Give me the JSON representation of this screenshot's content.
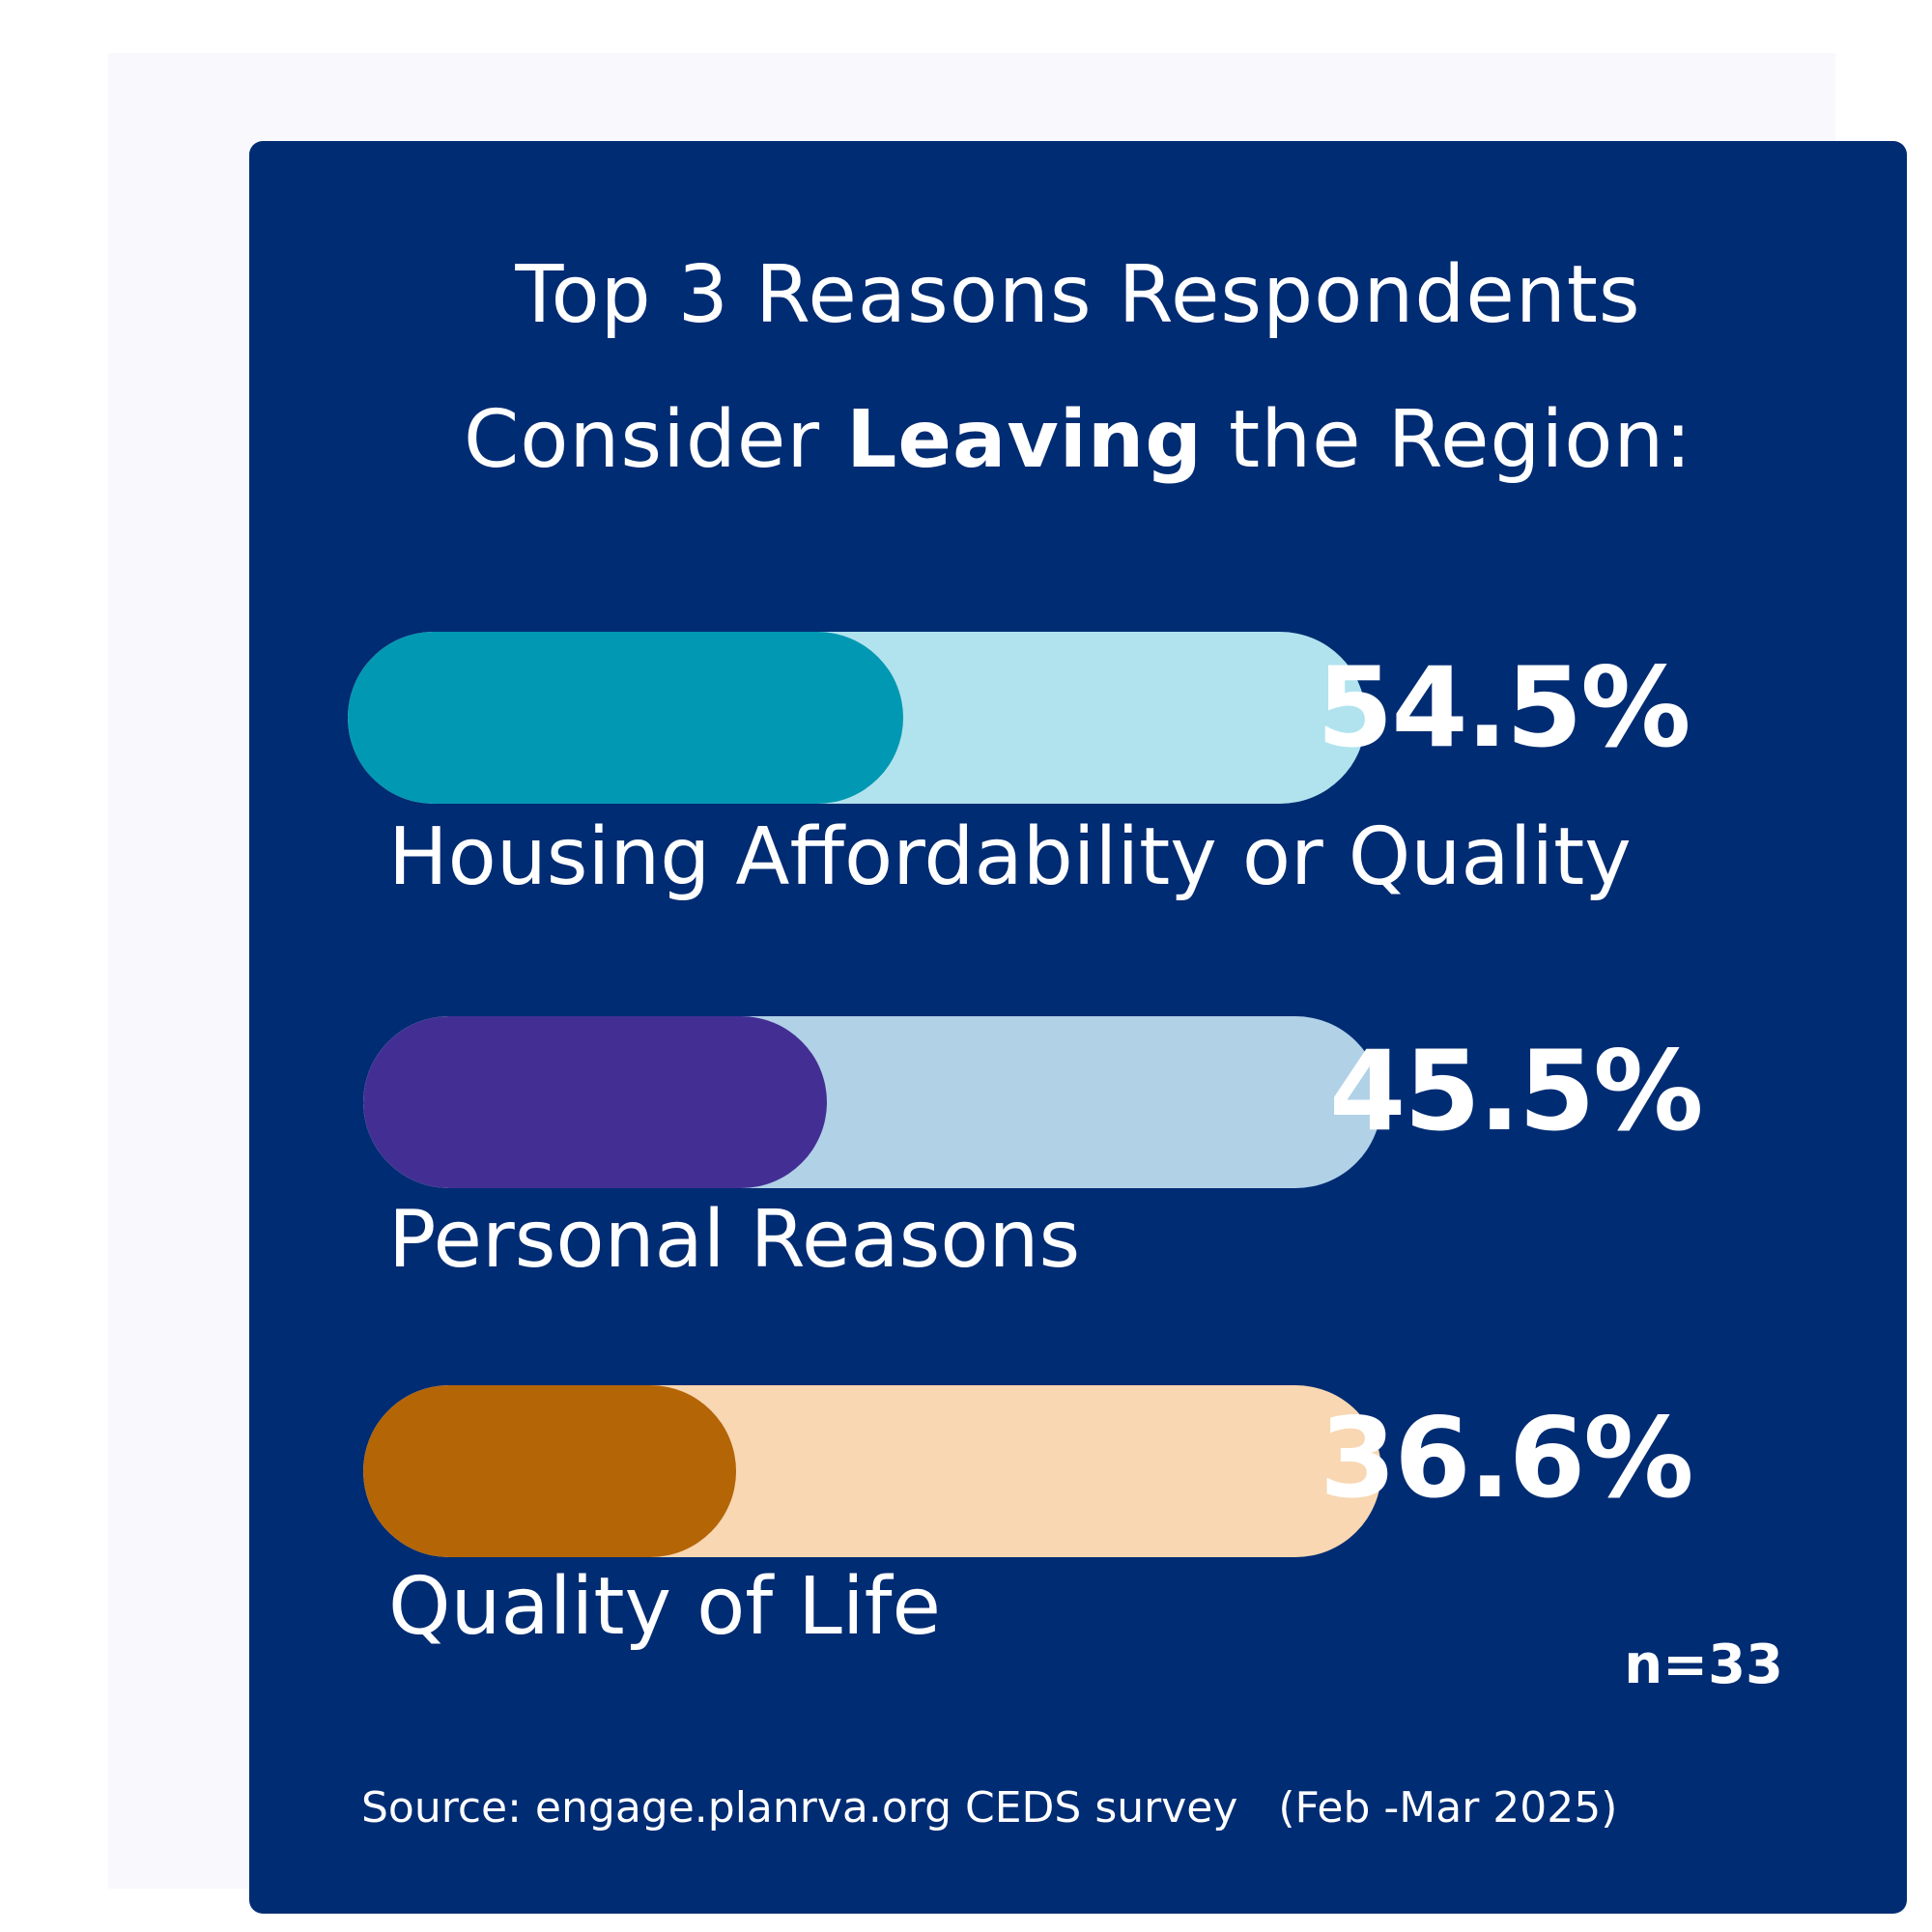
{
  "chart_data": {
    "type": "bar",
    "title_parts": [
      "Top 3 Reasons Respondents",
      "Consider ",
      "Leaving",
      " the Region:"
    ],
    "categories": [
      "Housing Affordability or Quality",
      "Personal Reasons",
      "Quality of Life"
    ],
    "values": [
      54.5,
      45.5,
      36.6
    ],
    "value_labels": [
      "54.5%",
      "45.5%",
      "36.6%"
    ],
    "fill_colors": [
      "#0098b2",
      "#432f94",
      "#b46506"
    ],
    "track_colors": [
      "#b0e3ee",
      "#b1d1e7",
      "#f8d7b2"
    ],
    "sample_size": "n=33",
    "source": "Source: engage.planrva.org CEDS survey   (Feb -Mar 2025)"
  }
}
